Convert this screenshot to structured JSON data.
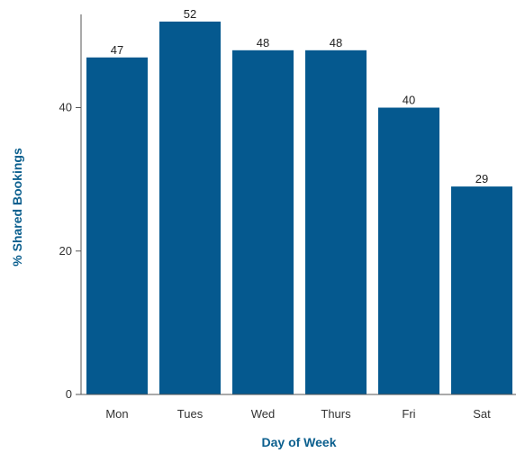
{
  "colors": {
    "bar": "#05598F",
    "axis": "#555555",
    "axis_title": "#0B5F8E"
  },
  "chart_data": {
    "type": "bar",
    "title": "",
    "xlabel": "Day of Week",
    "ylabel": "% Shared Bookings",
    "categories": [
      "Mon",
      "Tues",
      "Wed",
      "Thurs",
      "Fri",
      "Sat"
    ],
    "values": [
      47,
      52,
      48,
      48,
      40,
      29
    ],
    "data_labels": [
      "47",
      "52",
      "48",
      "48",
      "40",
      "29"
    ],
    "ylim": [
      0,
      53
    ],
    "yticks": [
      0,
      20,
      40
    ],
    "ytick_labels": [
      "0",
      "20",
      "40"
    ],
    "grid": false,
    "legend": "none"
  }
}
